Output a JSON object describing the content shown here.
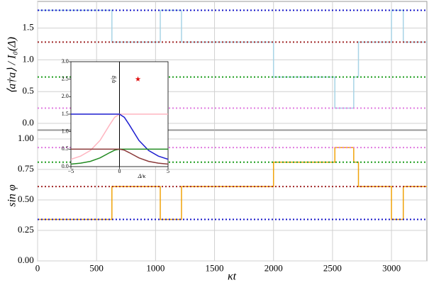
{
  "chart_data": [
    {
      "type": "line",
      "ylabel": "⟨a†a⟩ / I₀(Δ)",
      "xlim": [
        0,
        3300
      ],
      "ylim": [
        -0.1,
        1.92
      ],
      "xticks": [
        0,
        500,
        1000,
        1500,
        2000,
        2500,
        3000
      ],
      "yticks": [
        {
          "value": 0.0,
          "label": "0.0"
        },
        0.5,
        {
          "value": 1.0,
          "label": "1.0"
        },
        1.5
      ],
      "grid": true,
      "hlines": [
        {
          "value": 1.78,
          "color": "#1414c8"
        },
        {
          "value": 1.28,
          "color": "#a02828"
        },
        {
          "value": 0.73,
          "color": "#1e9e1e"
        },
        {
          "value": 0.24,
          "color": "#e07ce0"
        }
      ],
      "x": [
        0,
        630,
        630,
        1040,
        1040,
        1220,
        1220,
        2000,
        2000,
        2520,
        2520,
        2680,
        2680,
        2720,
        2720,
        3000,
        3000,
        3100,
        3100,
        3300
      ],
      "series": [
        {
          "color": "#a8d4e6",
          "values": [
            1.78,
            1.78,
            1.28,
            1.28,
            1.78,
            1.78,
            1.28,
            1.28,
            0.73,
            0.73,
            0.24,
            0.24,
            0.73,
            0.73,
            1.28,
            1.28,
            1.78,
            1.78,
            1.28,
            1.28
          ]
        }
      ]
    },
    {
      "type": "line",
      "ylabel": "sin φ",
      "xlabel": "κt",
      "xlim": [
        0,
        3300
      ],
      "ylim": [
        0,
        1.07
      ],
      "xticks": [
        0,
        500,
        1000,
        1500,
        2000,
        2500,
        3000
      ],
      "yticks": [
        {
          "value": 0.0,
          "label": "0.00"
        },
        0.25,
        {
          "value": 0.5,
          "label": "0.50"
        },
        0.75,
        {
          "value": 1.0,
          "label": "1.00"
        }
      ],
      "grid": true,
      "hlines": [
        {
          "value": 0.93,
          "color": "#e07ce0"
        },
        {
          "value": 0.81,
          "color": "#1e9e1e"
        },
        {
          "value": 0.61,
          "color": "#a02828"
        },
        {
          "value": 0.34,
          "color": "#1414c8"
        }
      ],
      "x": [
        0,
        630,
        630,
        1040,
        1040,
        1220,
        1220,
        2000,
        2000,
        2520,
        2520,
        2680,
        2680,
        2720,
        2720,
        3000,
        3000,
        3100,
        3100,
        3300
      ],
      "series": [
        {
          "color": "#f0a30a",
          "values": [
            0.34,
            0.34,
            0.61,
            0.61,
            0.34,
            0.34,
            0.61,
            0.61,
            0.81,
            0.81,
            0.93,
            0.93,
            0.81,
            0.81,
            0.61,
            0.61,
            0.34,
            0.34,
            0.61,
            0.61
          ]
        }
      ]
    },
    {
      "type": "line",
      "ylabel": "η/g",
      "xlabel": "Δ/κ",
      "xlim": [
        -5,
        5
      ],
      "ylim": [
        0,
        3
      ],
      "xticks": [
        {
          "value": -5,
          "label": "−5"
        },
        0,
        5
      ],
      "yticks": [
        {
          "value": 0.0,
          "label": "0.0"
        },
        0.5,
        {
          "value": 1.0,
          "label": "1.0"
        },
        1.5,
        {
          "value": 2.0,
          "label": "2.0"
        },
        2.5,
        {
          "value": 3.0,
          "label": "3.0"
        }
      ],
      "grid": false,
      "vlines": [
        0
      ],
      "x": [
        -5,
        -4,
        -3,
        -2,
        -1,
        -0.5,
        0,
        0.5,
        1,
        2,
        3,
        4,
        5
      ],
      "series": [
        {
          "color": "#ffb6c1",
          "values": [
            0.21,
            0.3,
            0.46,
            0.75,
            1.2,
            1.41,
            1.5,
            1.5,
            1.5,
            1.5,
            1.5,
            1.5,
            1.5
          ]
        },
        {
          "color": "#1f1fd0",
          "values": [
            1.5,
            1.5,
            1.5,
            1.5,
            1.5,
            1.5,
            1.5,
            1.41,
            1.2,
            0.75,
            0.46,
            0.3,
            0.21
          ]
        },
        {
          "color": "#228b22",
          "values": [
            0.07,
            0.1,
            0.15,
            0.25,
            0.4,
            0.47,
            0.5,
            0.5,
            0.5,
            0.5,
            0.5,
            0.5,
            0.5
          ]
        },
        {
          "color": "#8b3a3a",
          "values": [
            0.5,
            0.5,
            0.5,
            0.5,
            0.5,
            0.5,
            0.5,
            0.47,
            0.4,
            0.25,
            0.15,
            0.1,
            0.07
          ]
        }
      ],
      "markers": {
        "x": [
          1.9
        ],
        "values": [
          2.5
        ],
        "color": "#e01010"
      }
    }
  ]
}
